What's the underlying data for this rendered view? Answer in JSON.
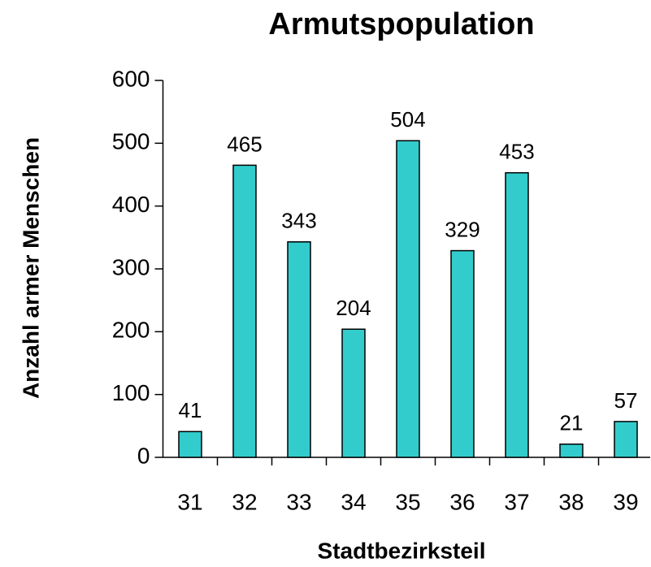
{
  "chart_data": {
    "type": "bar",
    "title": "Armutspopulation",
    "x_label": "Stadtbezirksteil",
    "y_label": "Anzahl armer Menschen",
    "categories": [
      "31",
      "32",
      "33",
      "34",
      "35",
      "36",
      "37",
      "38",
      "39"
    ],
    "values": [
      41,
      465,
      343,
      204,
      504,
      329,
      453,
      21,
      57
    ],
    "color": "#33cccc",
    "ylim": [
      0,
      600
    ],
    "yticks": [
      0,
      100,
      200,
      300,
      400,
      500,
      600
    ],
    "grid": false
  }
}
